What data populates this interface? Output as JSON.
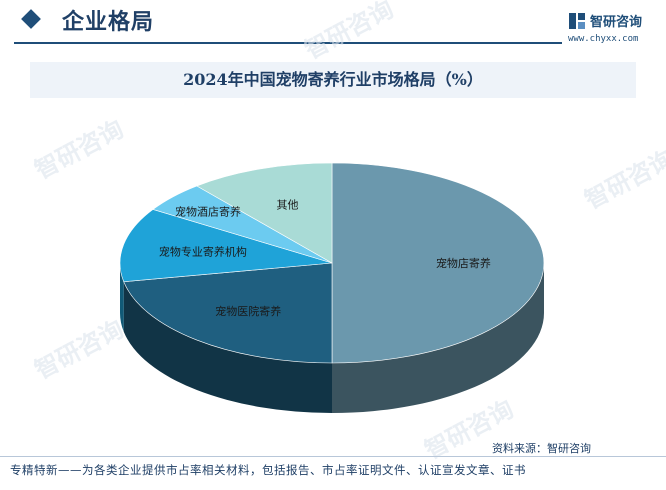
{
  "header": {
    "section_title": "企业格局",
    "brand_name": "智研咨询",
    "brand_url": "www.chyxx.com"
  },
  "chart_data": {
    "type": "pie",
    "title": "2024年中国宠物寄养行业市场格局（%）",
    "slices": [
      {
        "label": "宠物店寄养",
        "value": 50,
        "color": "#6b98ad"
      },
      {
        "label": "宠物医院寄养",
        "value": 22,
        "color": "#1f5f80"
      },
      {
        "label": "宠物专业寄养机构",
        "value": 12,
        "color": "#1fa3d8"
      },
      {
        "label": "宠物酒店寄养",
        "value": 5,
        "color": "#6ccbf0"
      },
      {
        "label": "其他",
        "value": 11,
        "color": "#a9dbd6"
      }
    ]
  },
  "source_text": "资料来源：智研咨询",
  "footer_text": "专精特新——为各类企业提供市占率相关材料，包括报告、市占率证明文件、认证宣发文章、证书",
  "watermark_text": "智研咨询"
}
